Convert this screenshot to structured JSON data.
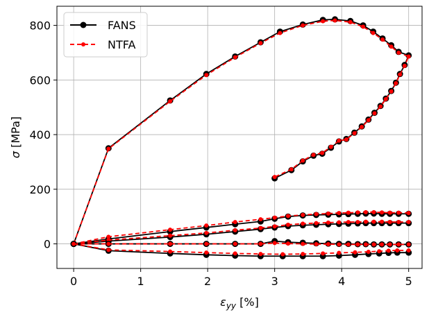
{
  "chart_data": {
    "type": "line",
    "title": "",
    "xlabel": "ε_yy [%]",
    "ylabel": "σ [MPa]",
    "xlim": [
      -0.25,
      5.2
    ],
    "ylim": [
      -90,
      870
    ],
    "xticks": [
      0,
      1,
      2,
      3,
      4,
      5
    ],
    "yticks": [
      0,
      200,
      400,
      600,
      800
    ],
    "grid": true,
    "legend_position": "top-left",
    "series": [
      {
        "name": "FANS",
        "color": "#000000",
        "line_style": "solid",
        "marker": "circle",
        "x": [
          0,
          0.52,
          1.44,
          1.98,
          2.41,
          2.79,
          3.08,
          3.42,
          3.72,
          3.9,
          4.13,
          4.32,
          4.47,
          4.61,
          4.74,
          4.85,
          5.0,
          4.94,
          4.87,
          4.81,
          4.74,
          4.66,
          4.58,
          4.49,
          4.4,
          4.3,
          4.19,
          4.07,
          3.96,
          3.84,
          3.71,
          3.58,
          3.42,
          3.25,
          3.0
        ],
        "y": [
          0,
          350,
          525,
          622,
          686,
          738,
          777,
          803,
          820,
          822,
          816,
          800,
          777,
          752,
          727,
          703,
          690,
          655,
          622,
          590,
          560,
          532,
          505,
          480,
          455,
          430,
          407,
          384,
          375,
          352,
          330,
          323,
          302,
          270,
          240
        ]
      },
      {
        "name": "NTFA",
        "color": "#ff0000",
        "line_style": "dashed",
        "marker": "circle",
        "x": [
          0,
          0.52,
          1.44,
          1.98,
          2.41,
          2.79,
          3.08,
          3.42,
          3.72,
          3.9,
          4.13,
          4.32,
          4.47,
          4.61,
          4.74,
          4.85,
          5.0,
          4.94,
          4.87,
          4.81,
          4.74,
          4.66,
          4.58,
          4.49,
          4.4,
          4.3,
          4.19,
          4.07,
          3.96,
          3.84,
          3.71,
          3.58,
          3.42,
          3.25,
          3.0
        ],
        "y": [
          0,
          348,
          522,
          618,
          683,
          735,
          772,
          800,
          815,
          818,
          812,
          795,
          772,
          748,
          722,
          700,
          686,
          652,
          620,
          588,
          558,
          530,
          503,
          478,
          453,
          428,
          405,
          382,
          378,
          355,
          333,
          326,
          305,
          273,
          245
        ]
      },
      {
        "name": "FANS",
        "color": "#000000",
        "line_style": "solid",
        "marker": "circle",
        "x": [
          0,
          0.52,
          1.44,
          1.98,
          2.41,
          2.79,
          3.0,
          3.2,
          3.42,
          3.62,
          3.8,
          3.96,
          4.1,
          4.24,
          4.36,
          4.48,
          4.6,
          4.72,
          4.85,
          5.0
        ],
        "y": [
          0,
          18,
          45,
          60,
          72,
          82,
          92,
          100,
          104,
          106,
          107,
          108,
          109,
          110,
          111,
          111,
          110,
          110,
          110,
          110
        ]
      },
      {
        "name": "NTFA",
        "color": "#ff0000",
        "line_style": "dashed",
        "marker": "circle",
        "x": [
          0,
          0.52,
          1.44,
          1.98,
          2.41,
          2.79,
          3.0,
          3.2,
          3.42,
          3.62,
          3.8,
          3.96,
          4.1,
          4.24,
          4.36,
          4.48,
          4.6,
          4.72,
          4.85,
          5.0
        ],
        "y": [
          0,
          26,
          52,
          67,
          80,
          90,
          96,
          102,
          106,
          109,
          111,
          113,
          114,
          115,
          116,
          116,
          115,
          114,
          114,
          113
        ]
      },
      {
        "name": "FANS",
        "color": "#000000",
        "line_style": "solid",
        "marker": "circle",
        "x": [
          0,
          0.52,
          1.44,
          1.98,
          2.41,
          2.79,
          3.0,
          3.2,
          3.42,
          3.62,
          3.8,
          3.96,
          4.1,
          4.24,
          4.36,
          4.48,
          4.6,
          4.72,
          4.85,
          5.0
        ],
        "y": [
          0,
          10,
          25,
          35,
          45,
          54,
          60,
          65,
          68,
          70,
          72,
          73,
          74,
          75,
          76,
          76,
          76,
          76,
          76,
          76
        ]
      },
      {
        "name": "NTFA",
        "color": "#ff0000",
        "line_style": "dashed",
        "marker": "circle",
        "x": [
          0,
          0.52,
          1.44,
          1.98,
          2.41,
          2.79,
          3.0,
          3.2,
          3.42,
          3.62,
          3.8,
          3.96,
          4.1,
          4.24,
          4.36,
          4.48,
          4.6,
          4.72,
          4.85,
          5.0
        ],
        "y": [
          0,
          14,
          30,
          40,
          50,
          58,
          64,
          70,
          74,
          76,
          78,
          79,
          80,
          80,
          81,
          81,
          81,
          80,
          80,
          80
        ]
      },
      {
        "name": "FANS",
        "color": "#000000",
        "line_style": "solid",
        "marker": "circle",
        "x": [
          0,
          0.52,
          1.44,
          1.98,
          2.41,
          2.79,
          3.0,
          3.2,
          3.42,
          3.62,
          3.8,
          3.96,
          4.1,
          4.24,
          4.36,
          4.48,
          4.6,
          4.72,
          4.85,
          5.0
        ],
        "y": [
          0,
          0,
          0,
          0,
          0,
          0,
          10,
          6,
          4,
          2,
          1,
          0,
          0,
          -1,
          -1,
          -2,
          -2,
          -2,
          -2,
          -2
        ]
      },
      {
        "name": "NTFA",
        "color": "#ff0000",
        "line_style": "dashed",
        "marker": "circle",
        "x": [
          0,
          0.52,
          1.44,
          1.98,
          2.41,
          2.79,
          3.0,
          3.2,
          3.42,
          3.62,
          3.8,
          3.96,
          4.1,
          4.24,
          4.36,
          4.48,
          4.6,
          4.72,
          4.85,
          5.0
        ],
        "y": [
          0,
          0,
          0,
          0,
          0,
          0,
          3,
          1,
          0,
          -1,
          -1,
          -2,
          -2,
          -2,
          -2,
          -2,
          -2,
          -2,
          -2,
          -2
        ]
      },
      {
        "name": "FANS",
        "color": "#000000",
        "line_style": "solid",
        "marker": "circle",
        "x": [
          0,
          0.52,
          1.44,
          1.98,
          2.41,
          2.79,
          3.12,
          3.42,
          3.72,
          3.96,
          4.2,
          4.4,
          4.56,
          4.7,
          4.83,
          5.0
        ],
        "y": [
          0,
          -25,
          -35,
          -40,
          -43,
          -45,
          -45,
          -45,
          -45,
          -43,
          -40,
          -37,
          -35,
          -33,
          -32,
          -32
        ]
      },
      {
        "name": "NTFA",
        "color": "#ff0000",
        "line_style": "dashed",
        "marker": "circle",
        "x": [
          0,
          0.52,
          1.44,
          1.98,
          2.41,
          2.79,
          3.12,
          3.42,
          3.72,
          3.96,
          4.2,
          4.4,
          4.56,
          4.7,
          4.83,
          5.0
        ],
        "y": [
          0,
          -22,
          -28,
          -32,
          -35,
          -37,
          -38,
          -37,
          -35,
          -33,
          -31,
          -29,
          -27,
          -25,
          -24,
          -24
        ]
      }
    ],
    "legend": [
      {
        "label": "FANS",
        "color": "#000000",
        "line_style": "solid",
        "marker": "circle"
      },
      {
        "label": "NTFA",
        "color": "#ff0000",
        "line_style": "dashed",
        "marker": "circle"
      }
    ]
  }
}
